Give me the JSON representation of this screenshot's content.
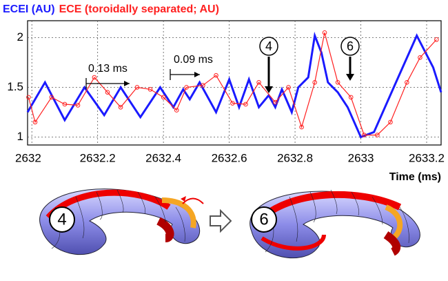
{
  "chart_data": {
    "type": "line",
    "xlabel": "Time (ms)",
    "xlim": [
      2631.987,
      2633.244
    ],
    "xticks": [
      2632,
      2632.2,
      2632.4,
      2632.6,
      2632.8,
      2633,
      2633.2
    ],
    "ylim": [
      0.92,
      2.17
    ],
    "yticks": [
      1,
      1.5,
      2
    ],
    "grid": true,
    "series": [
      {
        "name": "ECEI (AU)",
        "color": "#1a1aff",
        "marker": false,
        "x": [
          2631.987,
          2632.04,
          2632.1,
          2632.16,
          2632.22,
          2632.27,
          2632.33,
          2632.39,
          2632.43,
          2632.46,
          2632.48,
          2632.51,
          2632.56,
          2632.6,
          2632.63,
          2632.66,
          2632.69,
          2632.72,
          2632.74,
          2632.76,
          2632.79,
          2632.81,
          2632.84,
          2632.86,
          2632.88,
          2632.9,
          2632.93,
          2632.96,
          2633.0,
          2633.04,
          2633.1,
          2633.17,
          2633.22,
          2633.244
        ],
        "values": [
          1.25,
          1.55,
          1.17,
          1.5,
          1.22,
          1.5,
          1.2,
          1.5,
          1.3,
          1.48,
          1.38,
          1.55,
          1.25,
          1.58,
          1.3,
          1.58,
          1.3,
          1.42,
          1.3,
          1.48,
          1.25,
          1.5,
          1.6,
          2.02,
          1.85,
          1.55,
          1.45,
          1.3,
          1.0,
          1.05,
          1.5,
          2.02,
          1.7,
          1.45
        ]
      },
      {
        "name": "ECE (toroidally separated; AU)",
        "color": "#ff2020",
        "marker": true,
        "x": [
          2631.99,
          2632.01,
          2632.06,
          2632.1,
          2632.14,
          2632.19,
          2632.23,
          2632.27,
          2632.32,
          2632.36,
          2632.4,
          2632.44,
          2632.47,
          2632.52,
          2632.56,
          2632.61,
          2632.65,
          2632.69,
          2632.74,
          2632.78,
          2632.82,
          2632.86,
          2632.89,
          2632.93,
          2632.97,
          2633.01,
          2633.05,
          2633.09,
          2633.14,
          2633.18,
          2633.23
        ],
        "values": [
          1.4,
          1.15,
          1.4,
          1.33,
          1.32,
          1.6,
          1.45,
          1.3,
          1.5,
          1.48,
          1.4,
          1.27,
          1.5,
          1.52,
          1.62,
          1.34,
          1.33,
          1.55,
          1.35,
          1.5,
          1.1,
          1.55,
          2.05,
          1.55,
          1.4,
          1.02,
          1.02,
          1.15,
          1.55,
          1.8,
          1.98
        ]
      }
    ],
    "annotations": [
      "0.13 ms",
      "0.09 ms",
      "4",
      "6",
      "4",
      "6"
    ]
  }
}
